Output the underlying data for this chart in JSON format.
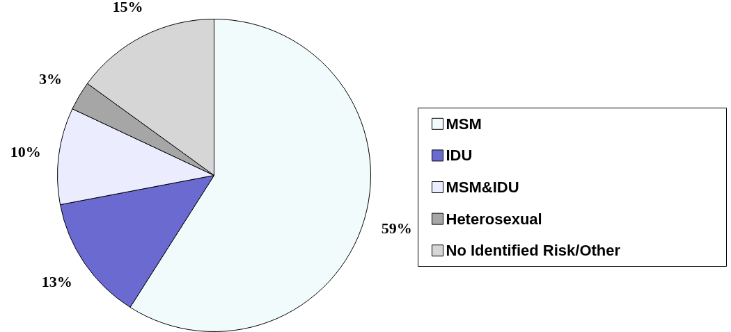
{
  "chart_data": {
    "type": "pie",
    "categories": [
      "MSM",
      "IDU",
      "MSM&IDU",
      "Heterosexual",
      "No Identified Risk/Other"
    ],
    "values": [
      59,
      13,
      10,
      3,
      15
    ],
    "colors": [
      "#f2fbfb",
      "#6a6ad0",
      "#ececff",
      "#a6a6a6",
      "#d6d6d6"
    ],
    "value_labels": [
      "59%",
      "13%",
      "10%",
      "3%",
      "15%"
    ],
    "legend": "right"
  }
}
